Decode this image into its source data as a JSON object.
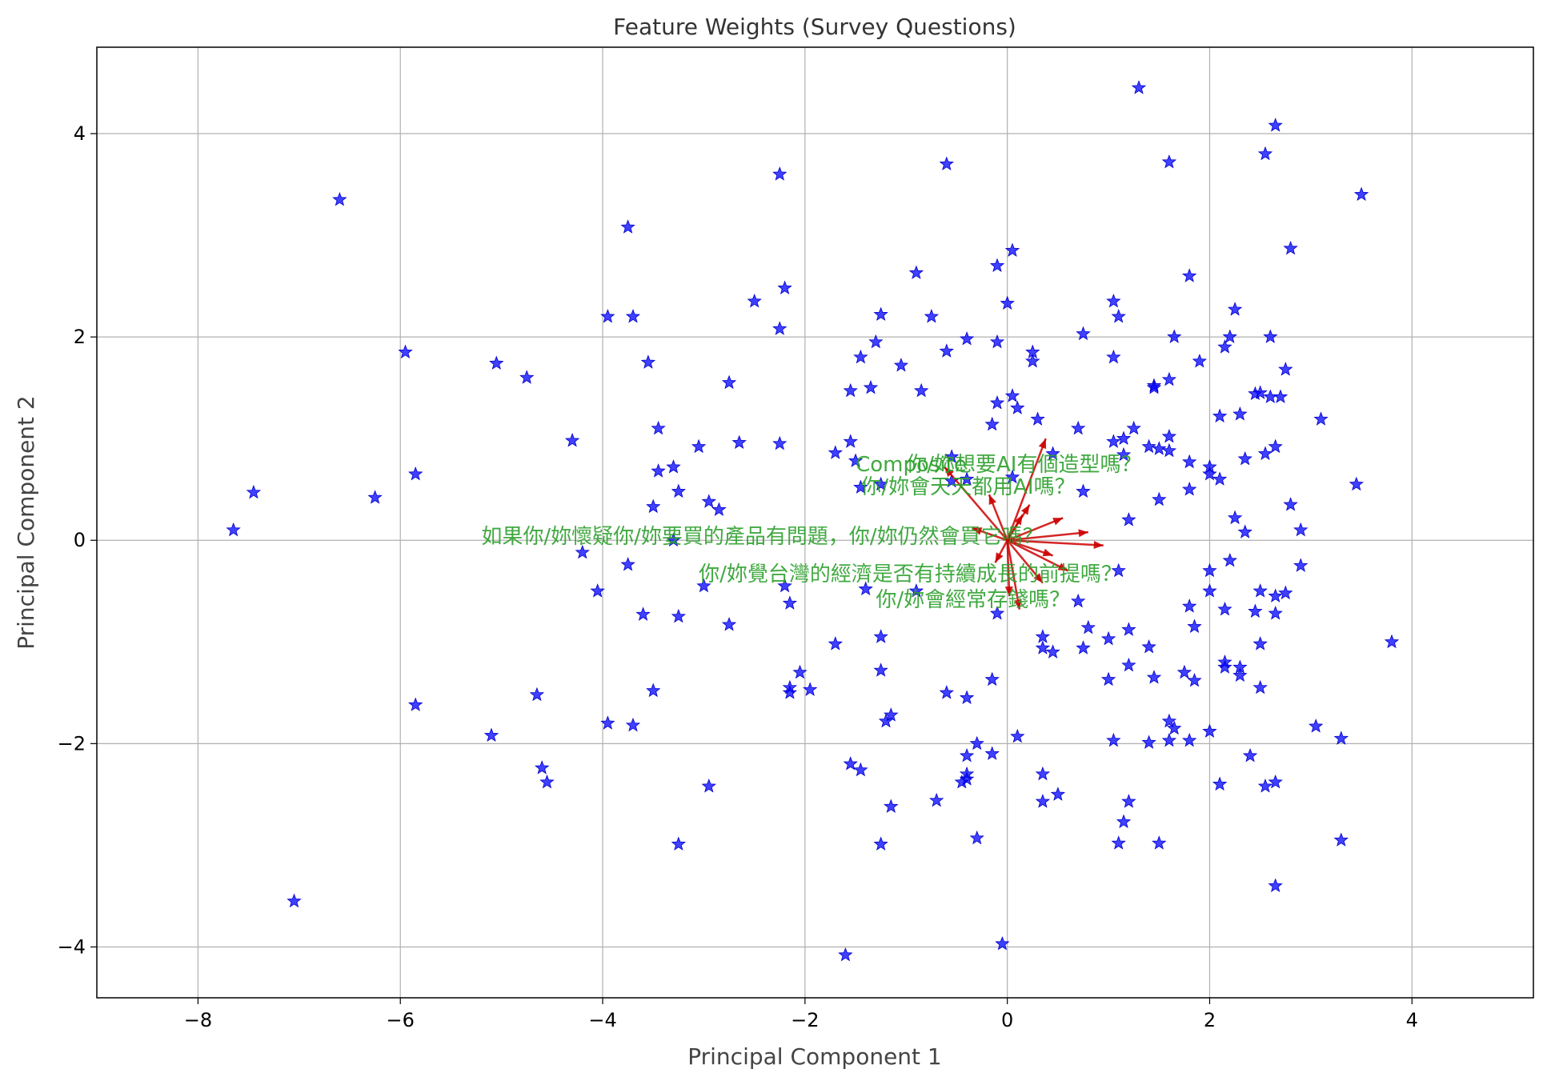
{
  "chart_data": {
    "type": "scatter",
    "title": "Feature Weights (Survey Questions)",
    "xlabel": "Principal Component 1",
    "ylabel": "Principal Component 2",
    "xlim": [
      -9.0,
      5.2
    ],
    "ylim": [
      -4.5,
      4.85
    ],
    "xticks": [
      -8,
      -6,
      -4,
      -2,
      0,
      2,
      4
    ],
    "yticks": [
      -4,
      -2,
      0,
      2,
      4
    ],
    "grid": true,
    "point_color": "#0000ff",
    "vector_color": "#cc0000",
    "label_color": "#2ca02c",
    "points": [
      [
        1.3,
        4.45
      ],
      [
        2.65,
        4.08
      ],
      [
        2.55,
        3.8
      ],
      [
        1.6,
        3.72
      ],
      [
        -0.6,
        3.7
      ],
      [
        -2.25,
        3.6
      ],
      [
        -6.6,
        3.35
      ],
      [
        3.5,
        3.4
      ],
      [
        -3.75,
        3.08
      ],
      [
        2.8,
        2.87
      ],
      [
        0.05,
        2.85
      ],
      [
        -0.1,
        2.7
      ],
      [
        -0.9,
        2.63
      ],
      [
        1.8,
        2.6
      ],
      [
        -2.2,
        2.48
      ],
      [
        -2.5,
        2.35
      ],
      [
        1.05,
        2.35
      ],
      [
        0.0,
        2.33
      ],
      [
        2.25,
        2.27
      ],
      [
        -3.95,
        2.2
      ],
      [
        -3.7,
        2.2
      ],
      [
        -1.25,
        2.22
      ],
      [
        -0.75,
        2.2
      ],
      [
        1.1,
        2.2
      ],
      [
        -2.25,
        2.08
      ],
      [
        0.75,
        2.03
      ],
      [
        1.65,
        2.0
      ],
      [
        2.6,
        2.0
      ],
      [
        2.2,
        2.0
      ],
      [
        -0.4,
        1.98
      ],
      [
        -1.3,
        1.95
      ],
      [
        -0.1,
        1.95
      ],
      [
        -5.95,
        1.85
      ],
      [
        2.15,
        1.9
      ],
      [
        0.25,
        1.85
      ],
      [
        -0.6,
        1.86
      ],
      [
        -1.45,
        1.8
      ],
      [
        1.05,
        1.8
      ],
      [
        1.9,
        1.76
      ],
      [
        0.25,
        1.76
      ],
      [
        -5.05,
        1.74
      ],
      [
        -3.55,
        1.75
      ],
      [
        -1.05,
        1.72
      ],
      [
        2.75,
        1.68
      ],
      [
        -4.75,
        1.6
      ],
      [
        1.6,
        1.58
      ],
      [
        1.45,
        1.52
      ],
      [
        -2.75,
        1.55
      ],
      [
        1.45,
        1.5
      ],
      [
        -1.35,
        1.5
      ],
      [
        -1.55,
        1.47
      ],
      [
        -0.85,
        1.47
      ],
      [
        2.45,
        1.44
      ],
      [
        2.5,
        1.45
      ],
      [
        2.6,
        1.41
      ],
      [
        2.7,
        1.41
      ],
      [
        0.05,
        1.42
      ],
      [
        -0.1,
        1.35
      ],
      [
        0.1,
        1.3
      ],
      [
        2.1,
        1.22
      ],
      [
        2.3,
        1.24
      ],
      [
        3.1,
        1.19
      ],
      [
        0.3,
        1.19
      ],
      [
        -0.15,
        1.14
      ],
      [
        -3.45,
        1.1
      ],
      [
        0.7,
        1.1
      ],
      [
        1.25,
        1.1
      ],
      [
        1.6,
        1.02
      ],
      [
        1.15,
        1.0
      ],
      [
        -4.3,
        0.98
      ],
      [
        -2.65,
        0.96
      ],
      [
        -2.25,
        0.95
      ],
      [
        -1.55,
        0.97
      ],
      [
        1.05,
        0.97
      ],
      [
        1.4,
        0.92
      ],
      [
        -3.05,
        0.92
      ],
      [
        2.65,
        0.92
      ],
      [
        1.5,
        0.9
      ],
      [
        1.6,
        0.88
      ],
      [
        -1.7,
        0.86
      ],
      [
        0.45,
        0.85
      ],
      [
        1.15,
        0.84
      ],
      [
        2.55,
        0.85
      ],
      [
        -0.55,
        0.82
      ],
      [
        2.35,
        0.8
      ],
      [
        -1.5,
        0.78
      ],
      [
        1.8,
        0.77
      ],
      [
        -3.3,
        0.72
      ],
      [
        -3.45,
        0.68
      ],
      [
        2.0,
        0.72
      ],
      [
        2.0,
        0.65
      ],
      [
        2.1,
        0.6
      ],
      [
        -5.85,
        0.65
      ],
      [
        0.05,
        0.62
      ],
      [
        -0.4,
        0.6
      ],
      [
        -0.55,
        0.58
      ],
      [
        -1.45,
        0.52
      ],
      [
        -1.25,
        0.55
      ],
      [
        3.45,
        0.55
      ],
      [
        -7.45,
        0.47
      ],
      [
        -3.25,
        0.48
      ],
      [
        0.75,
        0.48
      ],
      [
        1.8,
        0.5
      ],
      [
        -6.25,
        0.42
      ],
      [
        1.5,
        0.4
      ],
      [
        -2.95,
        0.38
      ],
      [
        2.8,
        0.35
      ],
      [
        -3.5,
        0.33
      ],
      [
        -2.85,
        0.3
      ],
      [
        2.25,
        0.22
      ],
      [
        1.2,
        0.2
      ],
      [
        -7.65,
        0.1
      ],
      [
        2.9,
        0.1
      ],
      [
        2.35,
        0.08
      ],
      [
        -3.3,
        0.0
      ],
      [
        -4.2,
        -0.12
      ],
      [
        2.2,
        -0.2
      ],
      [
        2.9,
        -0.25
      ],
      [
        -3.75,
        -0.24
      ],
      [
        2.0,
        -0.3
      ],
      [
        1.1,
        -0.3
      ],
      [
        -3.0,
        -0.45
      ],
      [
        -2.2,
        -0.45
      ],
      [
        -4.05,
        -0.5
      ],
      [
        -0.9,
        -0.5
      ],
      [
        -1.4,
        -0.48
      ],
      [
        2.0,
        -0.5
      ],
      [
        2.5,
        -0.5
      ],
      [
        2.75,
        -0.52
      ],
      [
        2.65,
        -0.55
      ],
      [
        -2.15,
        -0.62
      ],
      [
        0.7,
        -0.6
      ],
      [
        1.8,
        -0.65
      ],
      [
        -3.6,
        -0.73
      ],
      [
        2.15,
        -0.68
      ],
      [
        2.45,
        -0.7
      ],
      [
        2.65,
        -0.72
      ],
      [
        -0.1,
        -0.72
      ],
      [
        -2.75,
        -0.83
      ],
      [
        -3.25,
        -0.75
      ],
      [
        1.2,
        -0.88
      ],
      [
        0.8,
        -0.86
      ],
      [
        1.85,
        -0.85
      ],
      [
        -1.25,
        -0.95
      ],
      [
        0.35,
        -0.95
      ],
      [
        1.0,
        -0.97
      ],
      [
        3.8,
        -1.0
      ],
      [
        -1.7,
        -1.02
      ],
      [
        2.5,
        -1.02
      ],
      [
        0.35,
        -1.06
      ],
      [
        0.45,
        -1.1
      ],
      [
        0.75,
        -1.06
      ],
      [
        1.4,
        -1.05
      ],
      [
        1.2,
        -1.23
      ],
      [
        2.15,
        -1.2
      ],
      [
        2.15,
        -1.25
      ],
      [
        2.3,
        -1.25
      ],
      [
        -1.25,
        -1.28
      ],
      [
        -2.05,
        -1.3
      ],
      [
        1.45,
        -1.35
      ],
      [
        1.75,
        -1.3
      ],
      [
        1.85,
        -1.38
      ],
      [
        2.3,
        -1.33
      ],
      [
        1.0,
        -1.37
      ],
      [
        -0.15,
        -1.37
      ],
      [
        -1.95,
        -1.47
      ],
      [
        -2.15,
        -1.45
      ],
      [
        -2.15,
        -1.5
      ],
      [
        -3.5,
        -1.48
      ],
      [
        2.5,
        -1.45
      ],
      [
        -0.6,
        -1.5
      ],
      [
        -0.4,
        -1.55
      ],
      [
        -4.65,
        -1.52
      ],
      [
        -5.85,
        -1.62
      ],
      [
        -1.15,
        -1.72
      ],
      [
        -1.2,
        -1.78
      ],
      [
        1.6,
        -1.78
      ],
      [
        -3.95,
        -1.8
      ],
      [
        -3.7,
        -1.82
      ],
      [
        3.05,
        -1.83
      ],
      [
        1.65,
        -1.85
      ],
      [
        2.0,
        -1.88
      ],
      [
        -5.1,
        -1.92
      ],
      [
        0.1,
        -1.93
      ],
      [
        1.05,
        -1.97
      ],
      [
        1.4,
        -1.99
      ],
      [
        1.6,
        -1.97
      ],
      [
        3.3,
        -1.95
      ],
      [
        1.8,
        -1.97
      ],
      [
        -0.3,
        -2.0
      ],
      [
        -0.4,
        -2.12
      ],
      [
        -0.15,
        -2.1
      ],
      [
        2.4,
        -2.12
      ],
      [
        -1.55,
        -2.2
      ],
      [
        -1.45,
        -2.26
      ],
      [
        -4.6,
        -2.24
      ],
      [
        0.35,
        -2.3
      ],
      [
        -0.4,
        -2.3
      ],
      [
        -0.4,
        -2.35
      ],
      [
        -0.45,
        -2.38
      ],
      [
        -4.55,
        -2.38
      ],
      [
        2.1,
        -2.4
      ],
      [
        -2.95,
        -2.42
      ],
      [
        2.55,
        -2.42
      ],
      [
        2.65,
        -2.38
      ],
      [
        0.5,
        -2.5
      ],
      [
        -0.7,
        -2.56
      ],
      [
        1.2,
        -2.57
      ],
      [
        0.35,
        -2.57
      ],
      [
        -1.15,
        -2.62
      ],
      [
        1.15,
        -2.77
      ],
      [
        -0.3,
        -2.93
      ],
      [
        3.3,
        -2.95
      ],
      [
        1.1,
        -2.98
      ],
      [
        1.5,
        -2.98
      ],
      [
        -1.25,
        -2.99
      ],
      [
        -3.25,
        -2.99
      ],
      [
        2.65,
        -3.4
      ],
      [
        -7.05,
        -3.55
      ],
      [
        -0.05,
        -3.97
      ],
      [
        -1.6,
        -4.08
      ]
    ],
    "vectors": [
      [
        0.38,
        1.0
      ],
      [
        -0.62,
        0.72
      ],
      [
        -0.18,
        0.45
      ],
      [
        0.22,
        0.35
      ],
      [
        0.55,
        0.22
      ],
      [
        0.8,
        0.08
      ],
      [
        0.95,
        -0.05
      ],
      [
        0.6,
        -0.3
      ],
      [
        0.35,
        -0.42
      ],
      [
        0.12,
        -0.68
      ],
      [
        0.02,
        -0.55
      ],
      [
        -0.12,
        -0.22
      ],
      [
        -0.35,
        0.12
      ],
      [
        0.15,
        0.25
      ],
      [
        0.45,
        -0.15
      ]
    ],
    "vector_labels": [
      {
        "text": "Composite",
        "at": [
          -1.5,
          0.68
        ]
      },
      {
        "text": "你/妳想要AI有個造型嗎？",
        "at": [
          -1.0,
          0.68
        ]
      },
      {
        "text": "你/妳會天天都用AI嗎？",
        "at": [
          -1.45,
          0.46
        ]
      },
      {
        "text": "如果你/妳懷疑你/妳要買的產品有問題，你/妳仍然會買它嗎？",
        "at": [
          -5.2,
          -0.03
        ]
      },
      {
        "text": "你/妳覺台灣的經濟是否有持續成長的前提嗎？",
        "at": [
          -3.05,
          -0.4
        ]
      },
      {
        "text": "你/妳會經常存錢嗎？",
        "at": [
          -1.3,
          -0.65
        ]
      }
    ]
  }
}
